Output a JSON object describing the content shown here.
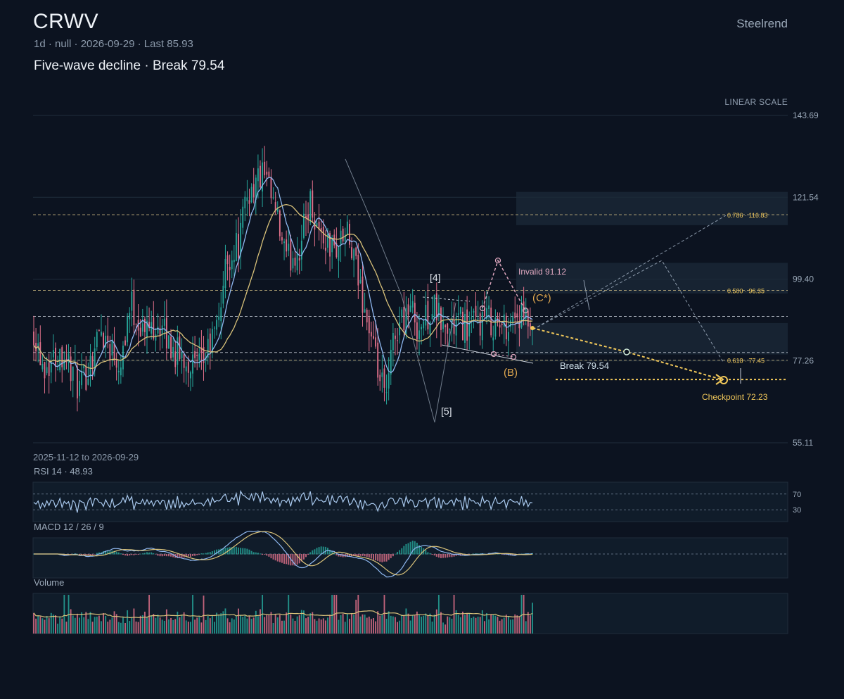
{
  "header": {
    "ticker": "CRWV",
    "meta": "1d · null · 2026-09-29 · Last 85.93",
    "subtitle": "Five-wave decline · Break 79.54",
    "brand": "Steelrend",
    "scale_label": "LINEAR SCALE",
    "date_range": "2025-11-12 to 2026-09-29"
  },
  "colors": {
    "background": "#0c1320",
    "up": "#26a69a",
    "down": "#e0708a",
    "ma_fast": "#8fb8f0",
    "ma_slow": "#d9c27a",
    "accent": "#f0c75a",
    "invalid": "#e0a8c0",
    "rsi": "#a9c9ee"
  },
  "chart_data": [
    {
      "type": "candlestick",
      "title": "CRWV",
      "y_axis_ticks": [
        55.11,
        77.26,
        99.4,
        121.54,
        143.69
      ],
      "ylim": [
        55.11,
        143.69
      ],
      "x_range": [
        "2025-11-12",
        "2026-09-29"
      ],
      "bars": 230,
      "last": 85.93,
      "moving_averages": 2,
      "levels": [
        {
          "label": "0.786 · 116.83",
          "value": 116.83
        },
        {
          "label": "0.500 · 96.35",
          "value": 96.35
        },
        {
          "label": "0.618 · 77.45",
          "value": 77.45
        },
        {
          "label": "",
          "value": 89.3
        },
        {
          "label": "",
          "value": 79.54
        }
      ],
      "zones": [
        {
          "from": 114.0,
          "to": 123.0
        },
        {
          "from": 95.5,
          "to": 103.8
        },
        {
          "from": 79.0,
          "to": 87.5
        }
      ],
      "annotations": {
        "wave_4": "[4]",
        "wave_5": "[5]",
        "wave_b": "(B)",
        "wave_c": "(C*)",
        "invalid": "Invalid 91.12",
        "break": "Break 79.54",
        "checkpoint": "Checkpoint 72.23"
      },
      "invalid_value": 91.12,
      "break_value": 79.54,
      "checkpoint_value": 72.23
    },
    {
      "type": "line",
      "title": "RSI 14 · 48.93",
      "last": 48.93,
      "levels": [
        70,
        30
      ],
      "level_labels": [
        "70",
        "30"
      ]
    },
    {
      "type": "bar",
      "title": "MACD 12 / 26 / 9",
      "params": [
        12,
        26,
        9
      ]
    },
    {
      "type": "bar",
      "title": "Volume"
    }
  ]
}
